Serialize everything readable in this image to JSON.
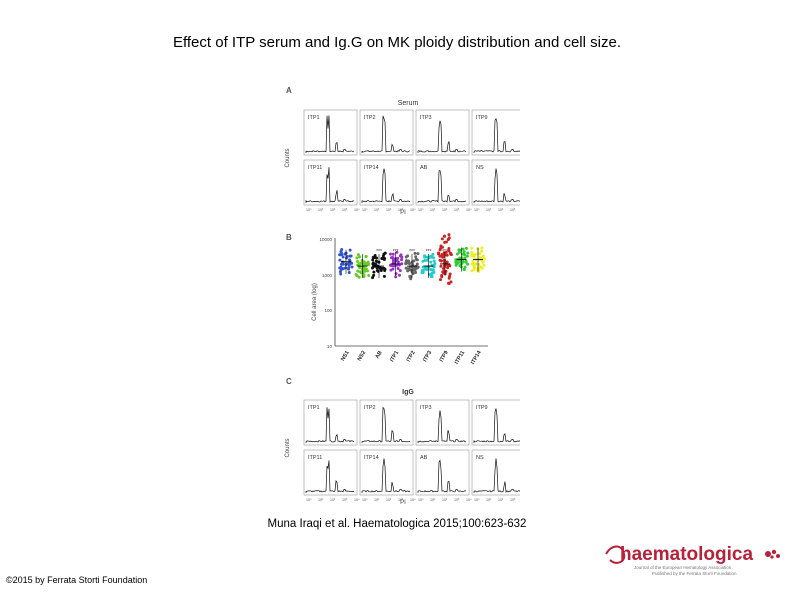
{
  "slide": {
    "title": "Effect of ITP serum and Ig.G on MK ploidy distribution and cell size.",
    "citation": "Muna Iraqi et al. Haematologica 2015;100:623-632",
    "copyright": "©2015 by Ferrata Storti Foundation"
  },
  "figure": {
    "panel_a": {
      "letter": "A",
      "group_title": "Serum",
      "y_label": "Counts",
      "x_label": "PI",
      "ticks": [
        "10⁰",
        "10¹",
        "10²",
        "10³",
        "10⁴"
      ],
      "histograms": [
        "ITP1",
        "ITP2",
        "ITP3",
        "ITP9",
        "ITP11",
        "ITP14",
        "AB",
        "NS"
      ]
    },
    "panel_b": {
      "letter": "B",
      "y_label": "Cell area (log)",
      "y_ticks": [
        "10000",
        "1000",
        "100",
        "10"
      ],
      "significance": "***",
      "categories": [
        "NS1",
        "NS2",
        "AB",
        "ITP1",
        "ITP2",
        "ITP3",
        "ITP9",
        "ITP11",
        "ITP14"
      ],
      "group_colors": [
        "#3355cc",
        "#66cc22",
        "#111111",
        "#9933cc",
        "#666666",
        "#22cccc",
        "#cc2222",
        "#33cc33",
        "#eeee22"
      ]
    },
    "panel_c": {
      "letter": "C",
      "group_title": "IgG",
      "y_label": "Counts",
      "x_label": "PI",
      "ticks": [
        "10⁰",
        "10¹",
        "10²",
        "10³",
        "10⁴"
      ],
      "histograms": [
        "ITP1",
        "ITP2",
        "ITP3",
        "ITP9",
        "ITP11",
        "ITP14",
        "AB",
        "NS"
      ]
    }
  },
  "logo": {
    "name": "haematologica",
    "tagline_1": "Journal of the European Hematology Association",
    "tagline_2": "Published by the Ferrata Storti Foundation",
    "brand_color": "#b8213a"
  }
}
